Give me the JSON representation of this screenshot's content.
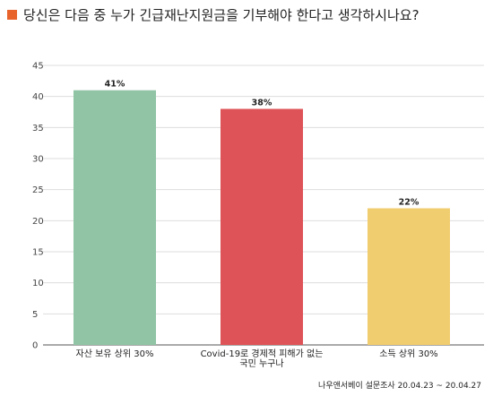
{
  "chart_data": {
    "type": "bar",
    "title": "당신은 다음 중 누가 긴급재난지원금을 기부해야 한다고 생각하시나요?",
    "categories": [
      [
        "자산 보유 상위 30%"
      ],
      [
        "Covid-19로 경제적 피해가 없는",
        "국민 누구나"
      ],
      [
        "소득 상위 30%"
      ]
    ],
    "values": [
      41,
      38,
      22
    ],
    "data_labels": [
      "41%",
      "38%",
      "22%"
    ],
    "ylim": [
      0,
      45
    ],
    "yticks": [
      0,
      5,
      10,
      15,
      20,
      25,
      30,
      35,
      40,
      45
    ],
    "grid": true,
    "colors": [
      "#90c4a5",
      "#de5357",
      "#f0cd6e"
    ]
  },
  "accent_color": "#e8632b",
  "source": "나우앤서베이 설문조사 20.04.23 ~ 20.04.27"
}
